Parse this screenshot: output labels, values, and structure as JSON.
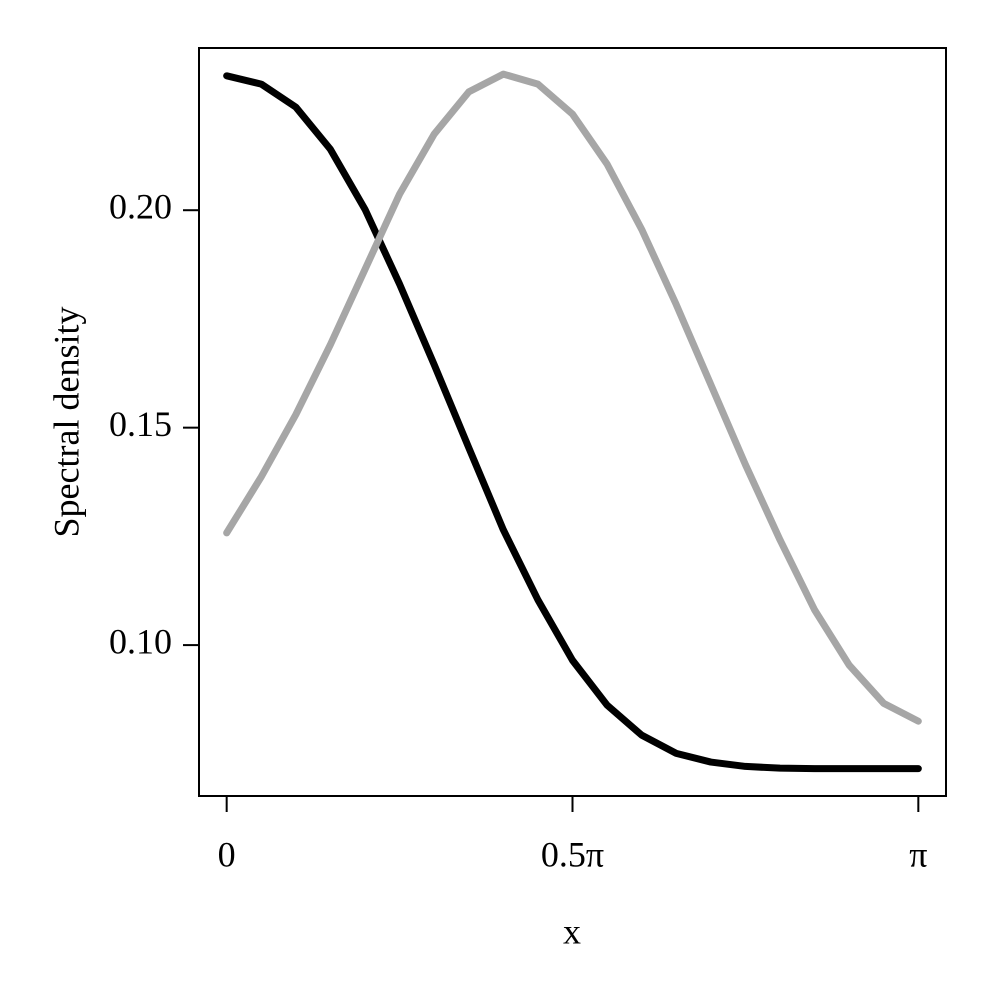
{
  "chart_data": {
    "type": "line",
    "x_label": "x",
    "y_label": "Spectral density",
    "x": [
      0,
      0.15708,
      0.31416,
      0.47124,
      0.62832,
      0.7854,
      0.94248,
      1.09956,
      1.25664,
      1.41372,
      1.5708,
      1.72788,
      1.88496,
      2.04204,
      2.19911,
      2.35619,
      2.51327,
      2.67035,
      2.82743,
      2.98451,
      3.14159
    ],
    "series": [
      {
        "color": "#000000",
        "values": [
          0.2309,
          0.229,
          0.2237,
          0.214,
          0.2002,
          0.183,
          0.1645,
          0.1454,
          0.1265,
          0.1104,
          0.0965,
          0.0862,
          0.0793,
          0.0751,
          0.0731,
          0.0721,
          0.0717,
          0.0716,
          0.0716,
          0.0716,
          0.0716
        ]
      },
      {
        "color": "#a6a6a6",
        "values": [
          0.1258,
          0.1387,
          0.153,
          0.1691,
          0.1864,
          0.2037,
          0.2175,
          0.2272,
          0.2313,
          0.229,
          0.2221,
          0.2106,
          0.1956,
          0.1783,
          0.1599,
          0.1415,
          0.1242,
          0.1081,
          0.0954,
          0.0866,
          0.0825
        ]
      }
    ],
    "xlim": [
      -0.1257,
      3.2673
    ],
    "xticks": [
      0,
      {
        "value": 1.5708,
        "label": "0.5π"
      },
      {
        "value": 3.14159,
        "label": "π"
      }
    ],
    "ylim": [
      0.0653,
      0.2373
    ],
    "yticks": [
      {
        "value": 0.1,
        "label": "0.10"
      },
      {
        "value": 0.15,
        "label": "0.15"
      },
      {
        "value": 0.2,
        "label": "0.20"
      }
    ],
    "grid": false
  }
}
